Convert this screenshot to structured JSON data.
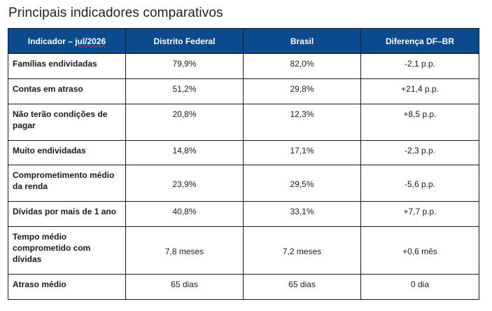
{
  "page": {
    "title": "Principais indicadores comparativos"
  },
  "table": {
    "headers": {
      "indicator_prefix": "Indicador – ",
      "indicator_period": "jul/2026",
      "df": "Distrito Federal",
      "br": "Brasil",
      "diff": "Diferença DF–BR"
    },
    "rows": [
      {
        "indicator": "Famílias endividadas",
        "df": "79,9%",
        "br": "82,0%",
        "diff": "-2,1 p.p."
      },
      {
        "indicator": "Contas em atraso",
        "df": "51,2%",
        "br": "29,8%",
        "diff": "+21,4 p.p."
      },
      {
        "indicator": "Não terão condições de pagar",
        "df": "20,8%",
        "br": "12,3%",
        "diff": "+8,5 p.p."
      },
      {
        "indicator": "Muito endividadas",
        "df": "14,8%",
        "br": "17,1%",
        "diff": "-2,3 p.p."
      },
      {
        "indicator": "Comprometimento médio da renda",
        "df": "23,9%",
        "br": "29,5%",
        "diff": "-5,6 p.p."
      },
      {
        "indicator": "Dívidas por mais de 1 ano",
        "df": "40,8%",
        "br": "33,1%",
        "diff": "+7,7 p.p."
      },
      {
        "indicator": "Tempo médio comprometido com dívidas",
        "df": "7,8 meses",
        "br": "7,2 meses",
        "diff": "+0,6 mês"
      },
      {
        "indicator": "Atraso médio",
        "df": "65 dias",
        "br": "65 dias",
        "diff": "0 dia"
      }
    ]
  }
}
